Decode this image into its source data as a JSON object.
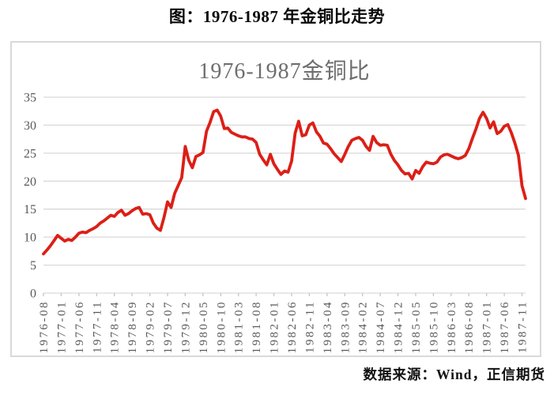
{
  "page_title": "图：1976-1987 年金铜比走势",
  "source_note": "数据来源：Wind，正信期货",
  "chart_data": {
    "type": "line",
    "title": "1976-1987金铜比",
    "xlabel": "",
    "ylabel": "",
    "ylim": [
      0,
      35
    ],
    "y_ticks": [
      0,
      5,
      10,
      15,
      20,
      25,
      30,
      35
    ],
    "grid": true,
    "legend": "none",
    "x_start": "1976-08",
    "x_interval": "monthly",
    "x_tick_every": 5,
    "x_tick_labels": [
      "1976-08",
      "1977-01",
      "1977-06",
      "1977-11",
      "1978-04",
      "1978-09",
      "1979-02",
      "1979-07",
      "1979-12",
      "1980-05",
      "1980-10",
      "1981-03",
      "1981-08",
      "1982-01",
      "1982-06",
      "1982-11",
      "1983-04",
      "1983-09",
      "1984-02",
      "1984-07",
      "1984-12",
      "1985-05",
      "1985-10",
      "1986-03",
      "1986-08",
      "1987-01",
      "1987-06",
      "1987-11"
    ],
    "series": [
      {
        "name": "金铜比",
        "color": "#dc1f16",
        "values": [
          7.0,
          7.7,
          8.5,
          9.4,
          10.3,
          9.8,
          9.3,
          9.6,
          9.4,
          10.0,
          10.7,
          10.9,
          10.8,
          11.2,
          11.5,
          11.9,
          12.5,
          12.9,
          13.4,
          13.9,
          13.7,
          14.4,
          14.8,
          13.9,
          14.2,
          14.7,
          15.1,
          15.3,
          14.1,
          14.2,
          14.0,
          12.5,
          11.6,
          11.2,
          13.5,
          16.3,
          15.3,
          17.8,
          19.2,
          20.6,
          26.2,
          23.7,
          22.4,
          24.4,
          24.7,
          25.1,
          28.9,
          30.5,
          32.4,
          32.7,
          31.6,
          29.4,
          29.5,
          28.7,
          28.4,
          28.1,
          27.9,
          27.9,
          27.6,
          27.5,
          26.9,
          24.8,
          23.8,
          22.9,
          24.8,
          23.1,
          22.1,
          21.2,
          21.8,
          21.6,
          23.6,
          28.6,
          30.7,
          28.1,
          28.3,
          30.0,
          30.4,
          28.8,
          28.0,
          26.8,
          26.6,
          25.8,
          24.9,
          24.2,
          23.5,
          24.8,
          26.2,
          27.3,
          27.6,
          27.8,
          27.3,
          26.2,
          25.5,
          28.0,
          26.9,
          26.4,
          26.5,
          26.4,
          24.8,
          23.7,
          22.9,
          21.9,
          21.3,
          21.4,
          20.4,
          21.9,
          21.4,
          22.6,
          23.4,
          23.2,
          23.1,
          23.4,
          24.3,
          24.7,
          24.8,
          24.5,
          24.2,
          24.0,
          24.2,
          24.6,
          25.8,
          27.6,
          29.3,
          31.2,
          32.3,
          31.2,
          29.5,
          30.6,
          28.5,
          28.9,
          29.8,
          30.1,
          28.6,
          26.8,
          24.6,
          19.2,
          16.9
        ]
      }
    ]
  },
  "style": {
    "line_color": "#dc1f16",
    "grid_color": "#d9d9d9",
    "tick_color": "#c6c6c6",
    "axis_label_color": "#595959",
    "chart_title_color": "#6e6e6e",
    "frame_border_color": "#d9d9d9",
    "background": "#ffffff",
    "title_color": "#0a0a0a"
  }
}
